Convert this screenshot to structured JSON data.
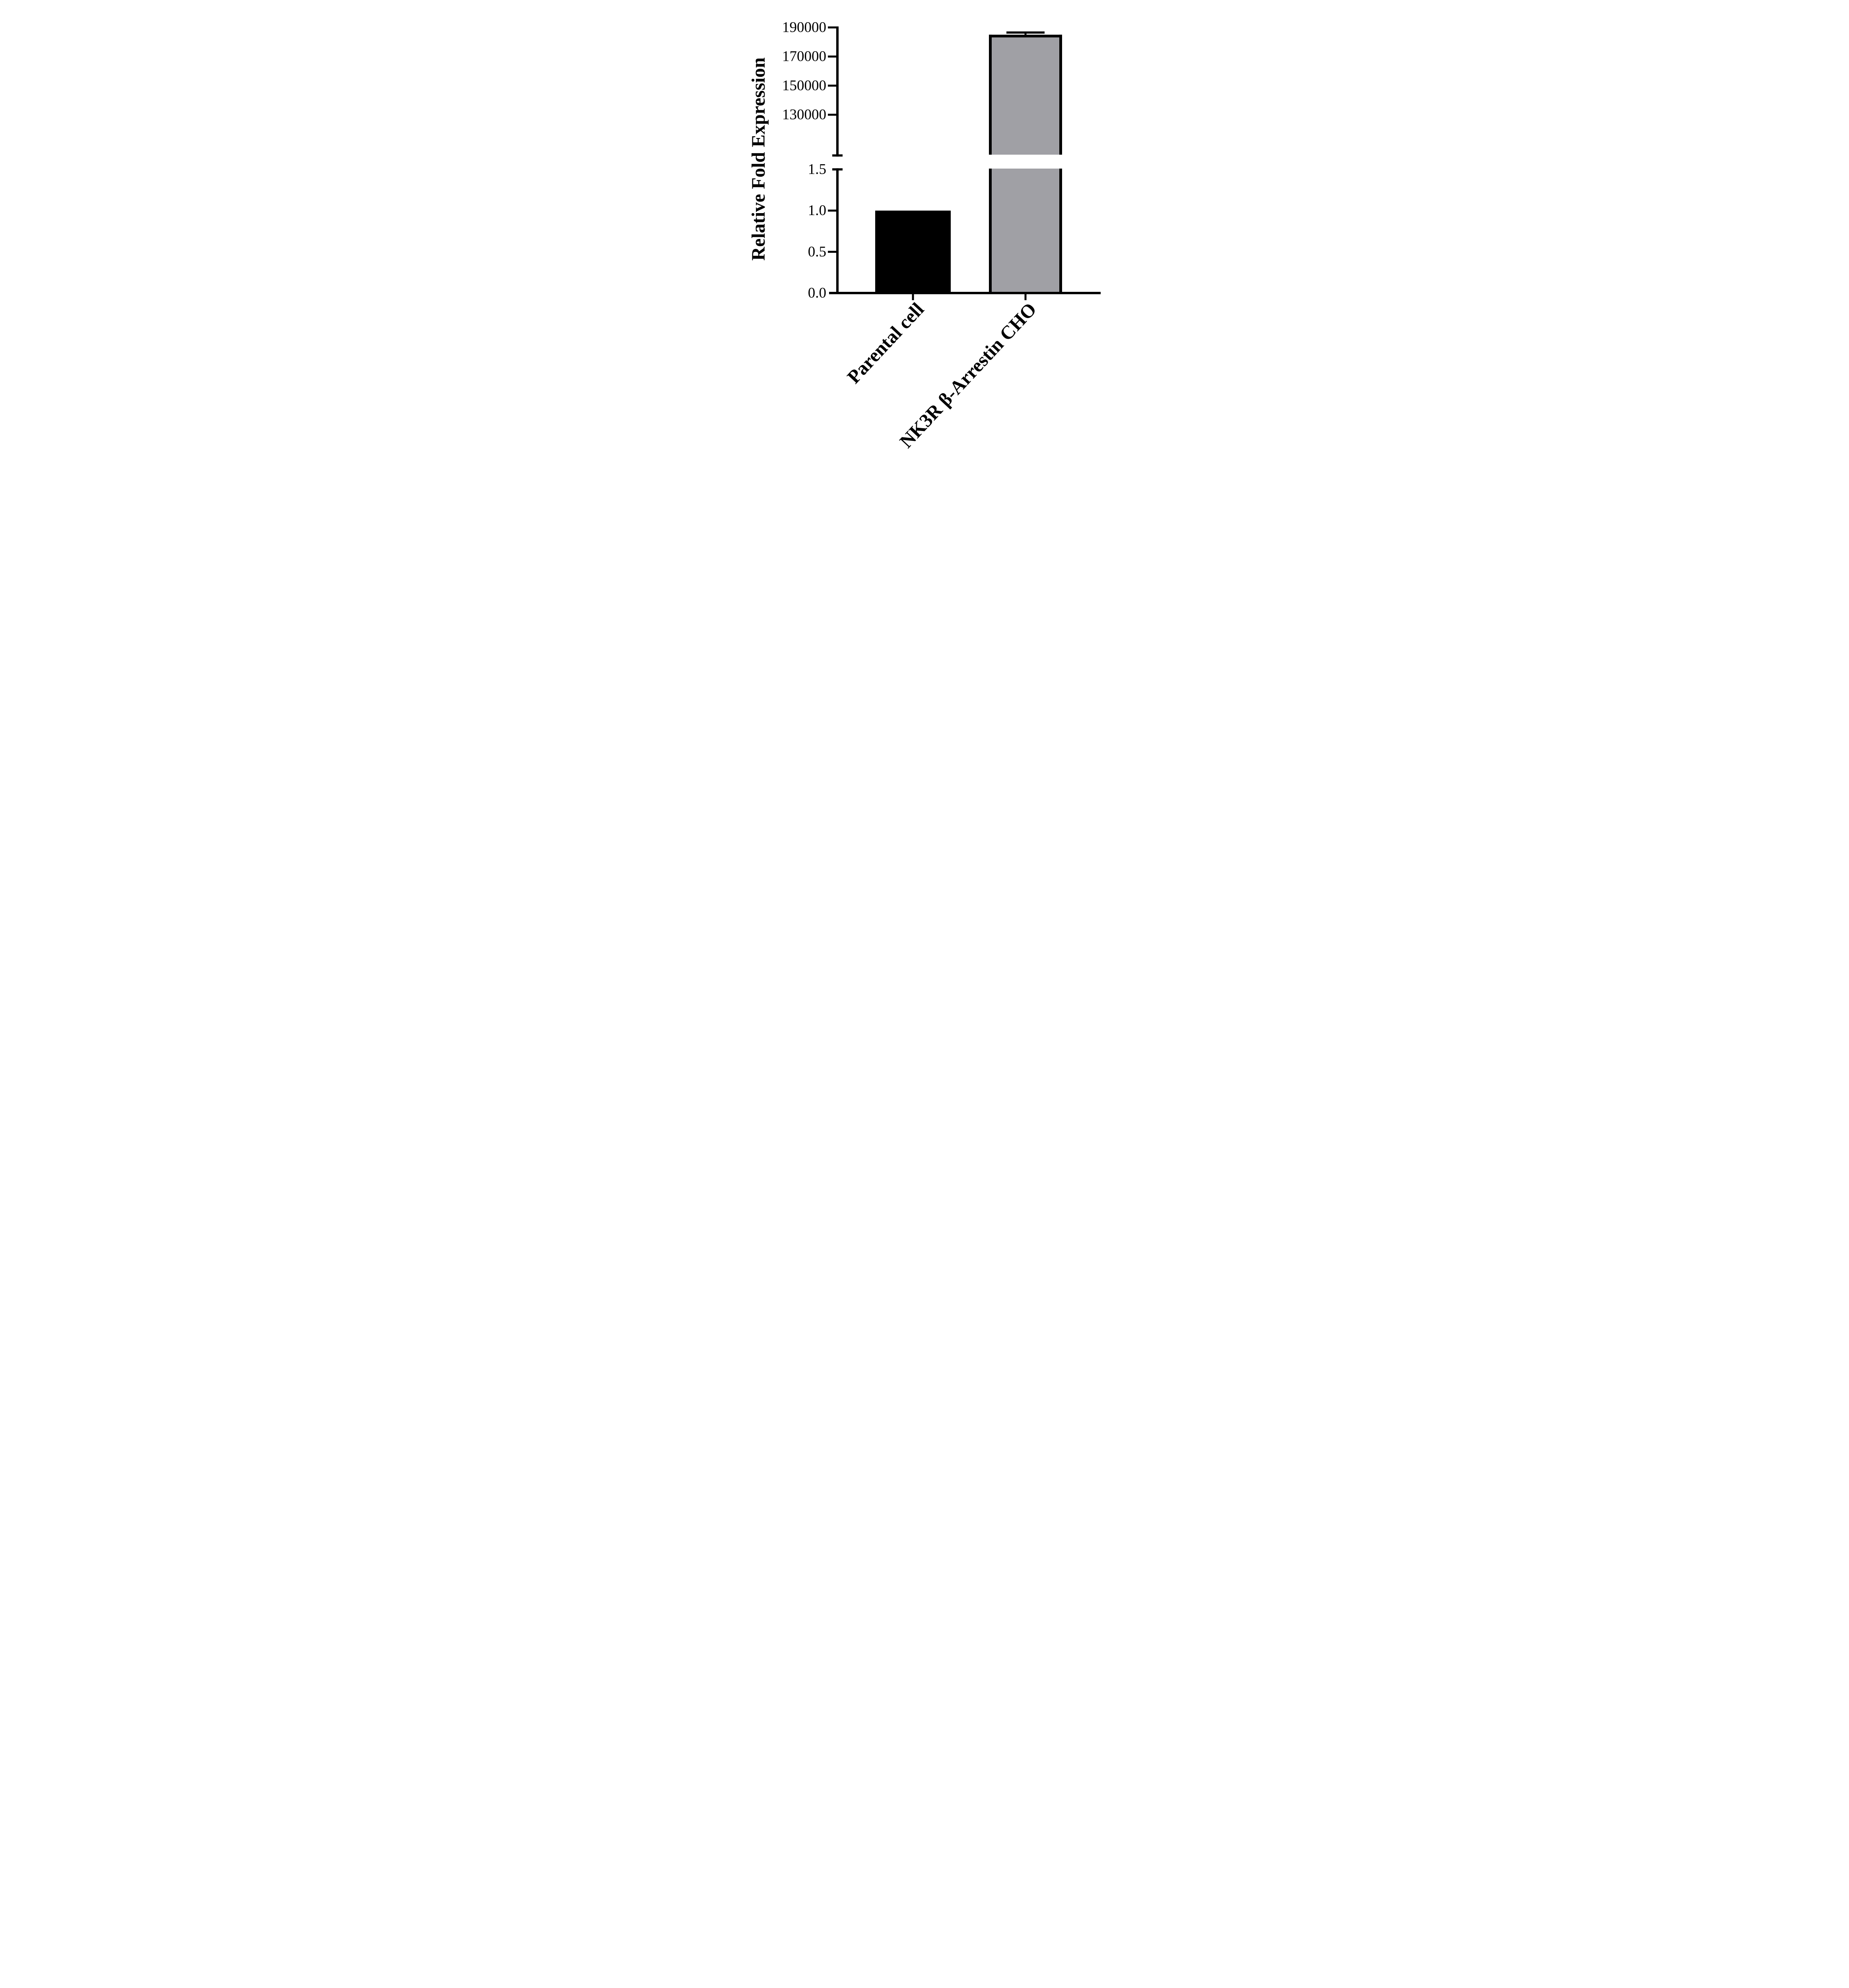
{
  "figure": {
    "background_color": "#FFFFFF",
    "axis_color": "#000000",
    "text_color": "#000000"
  },
  "chart_data": {
    "type": "bar",
    "title": "",
    "xlabel": "",
    "ylabel": "Relative Fold Expression",
    "categories": [
      "Parental cell",
      "NK3R β-Arrestin CHO"
    ],
    "series": [
      {
        "name": "Relative Fold Expression",
        "values": [
          1.0,
          185000
        ],
        "error_plus": [
          0,
          1500
        ],
        "fill_colors": [
          "#000000",
          "#A0A0A5"
        ],
        "outline_color": "#000000"
      }
    ],
    "broken_y_axis": {
      "lower_segment": {
        "range": [
          0,
          1.5
        ],
        "tick_values": [
          0,
          0.5,
          1.0,
          1.5
        ],
        "tick_labels": [
          "0.0",
          "0.5",
          "1.0",
          "1.5"
        ]
      },
      "upper_segment": {
        "range": [
          102000,
          190000
        ],
        "tick_values": [
          130000,
          150000,
          170000,
          190000
        ],
        "tick_labels": [
          "130000",
          "150000",
          "170000",
          "190000"
        ]
      }
    },
    "grid": false,
    "legend": "none",
    "x_tick_label_rotation_deg": -47
  }
}
